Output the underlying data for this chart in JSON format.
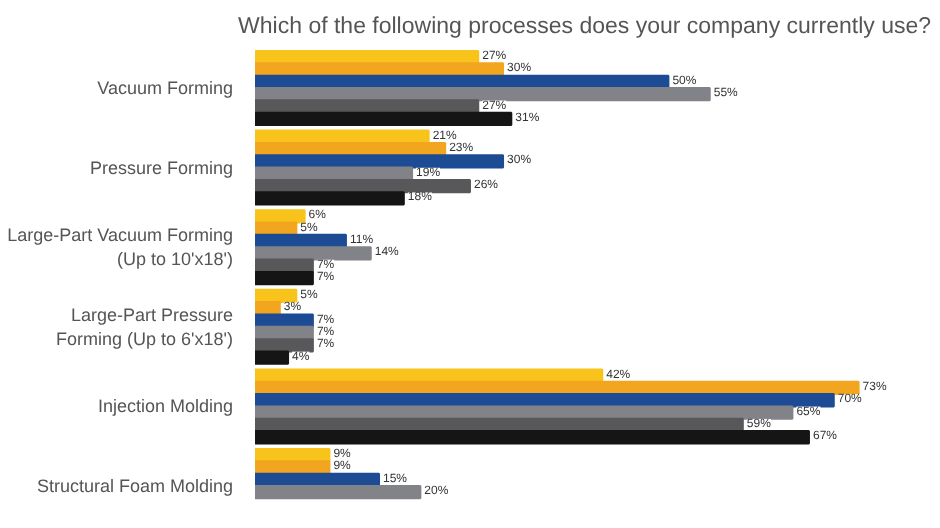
{
  "chart_data": {
    "type": "bar",
    "orientation": "horizontal",
    "title": "Which of the following processes does your company currently use?",
    "categories": [
      "Vacuum Forming",
      "Pressure Forming",
      "Large-Part Vacuum Forming (Up to 10'x18')",
      "Large-Part Pressure Forming (Up to 6'x18')",
      "Injection Molding",
      "Structural Foam Molding"
    ],
    "series": [
      {
        "color": "#f8c31a",
        "values": [
          27,
          21,
          6,
          5,
          42,
          9
        ],
        "value_labels": [
          "27%",
          "21%",
          "6%",
          "5%",
          "42%",
          "9%"
        ]
      },
      {
        "color": "#f2a51e",
        "values": [
          30,
          23,
          5,
          3,
          73,
          9
        ],
        "value_labels": [
          "30%",
          "23%",
          "5%",
          "3%",
          "73%",
          "9%"
        ]
      },
      {
        "color": "#1d4b94",
        "values": [
          50,
          30,
          11,
          7,
          70,
          15
        ],
        "value_labels": [
          "50%",
          "30%",
          "11%",
          "7%",
          "70%",
          "15%"
        ]
      },
      {
        "color": "#828389",
        "values": [
          55,
          19,
          14,
          7,
          65,
          20
        ],
        "value_labels": [
          "55%",
          "19%",
          "14%",
          "7%",
          "65%",
          "20%"
        ]
      },
      {
        "color": "#58585a",
        "values": [
          27,
          26,
          7,
          7,
          59,
          null
        ],
        "value_labels": [
          "27%",
          "26%",
          "7%",
          "7%",
          "59%",
          null
        ]
      },
      {
        "color": "#151515",
        "values": [
          31,
          18,
          7,
          4,
          67,
          null
        ],
        "value_labels": [
          "31%",
          "18%",
          "7%",
          "4%",
          "67%",
          null
        ]
      }
    ],
    "grid": false
  }
}
